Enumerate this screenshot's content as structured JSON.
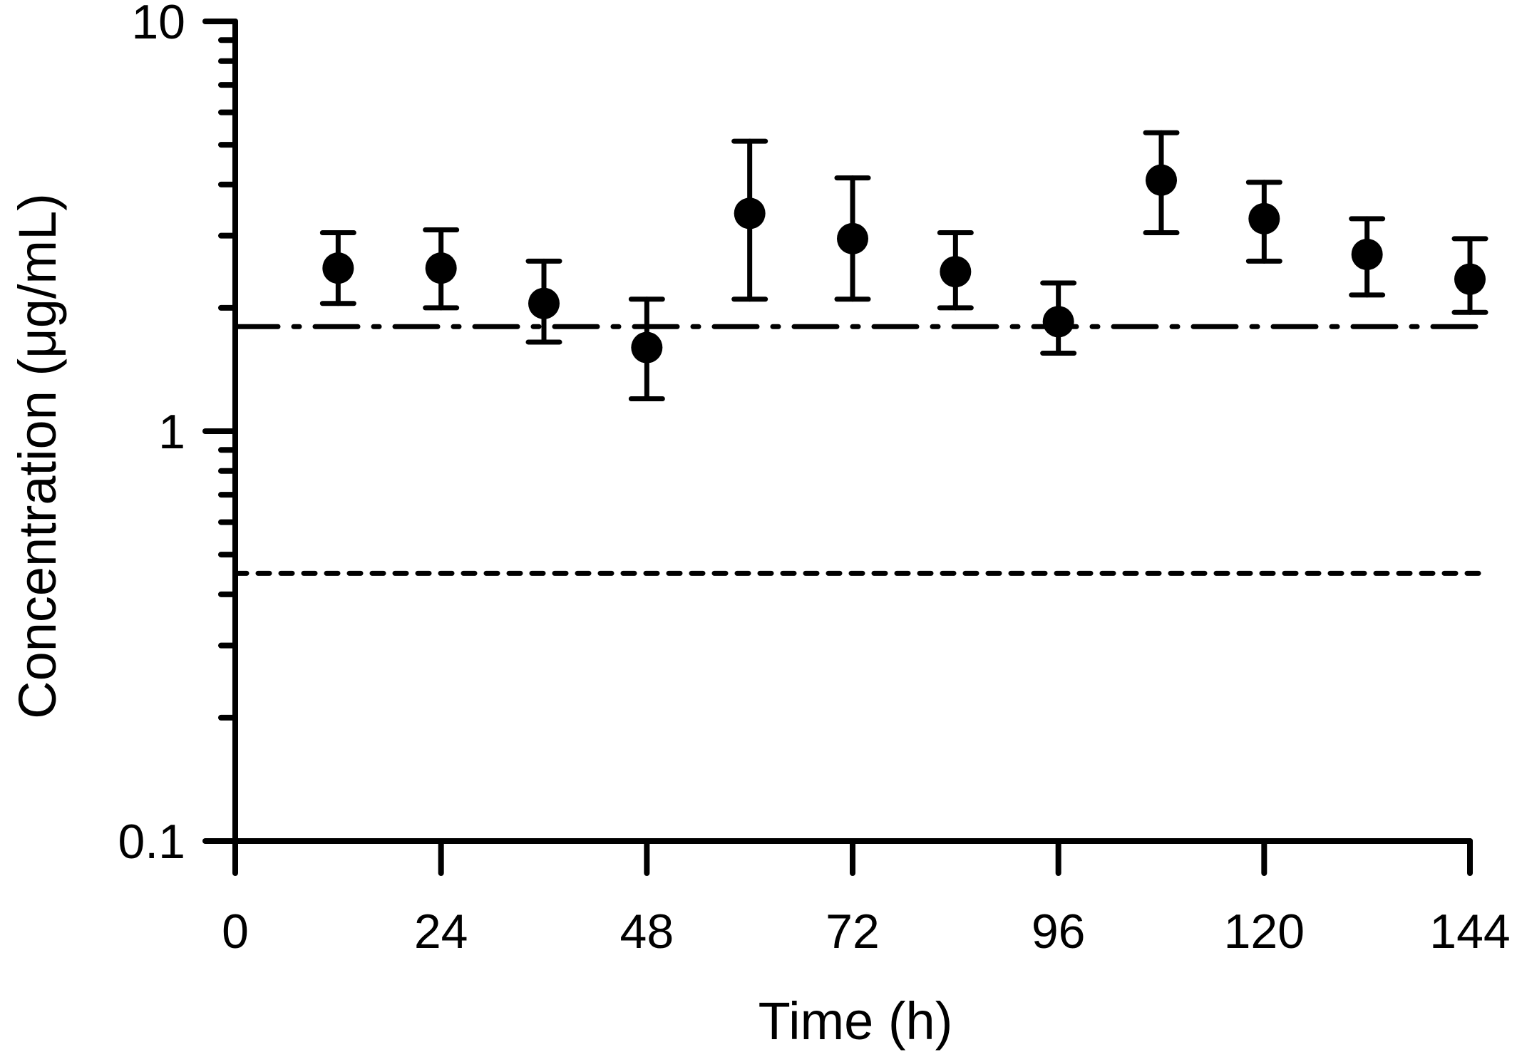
{
  "chart_data": {
    "type": "scatter",
    "title": "",
    "xlabel": "Time (h)",
    "ylabel": "Concentration (μg/mL)",
    "x_ticks": [
      "0",
      "24",
      "48",
      "72",
      "96",
      "120",
      "144"
    ],
    "y_ticks": [
      "0.1",
      "1",
      "10"
    ],
    "xlim": [
      0,
      144
    ],
    "ylim": [
      0.1,
      10
    ],
    "y_scale": "log",
    "grid": false,
    "series": [
      {
        "x": [
          12,
          24,
          36,
          48,
          60,
          72,
          84,
          96,
          108,
          120,
          132,
          144
        ],
        "y": [
          2.5,
          2.5,
          2.05,
          1.6,
          3.4,
          2.95,
          2.45,
          1.85,
          4.1,
          3.3,
          2.7,
          2.35
        ],
        "y_err_low": [
          2.05,
          2.0,
          1.65,
          1.2,
          2.1,
          2.1,
          2.0,
          1.55,
          3.05,
          2.6,
          2.15,
          1.95
        ],
        "y_err_high": [
          3.05,
          3.1,
          2.6,
          2.1,
          5.1,
          4.15,
          3.05,
          2.3,
          5.35,
          4.05,
          3.3,
          2.95
        ]
      }
    ],
    "reference_lines": [
      {
        "y": 1.8,
        "style": "dash-dot"
      },
      {
        "y": 0.45,
        "style": "dotted"
      }
    ]
  }
}
